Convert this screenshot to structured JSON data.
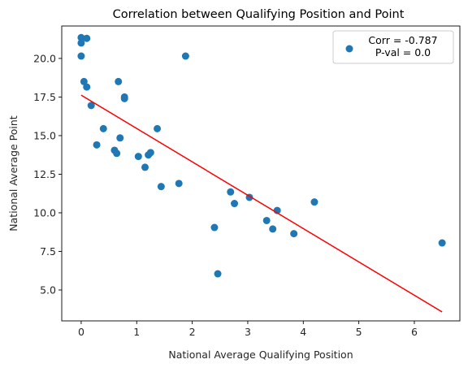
{
  "chart_data": {
    "type": "scatter",
    "title": "Correlation between Qualifying Position and Point",
    "xlabel": "National Average Qualifying Position",
    "ylabel": "National Average Point",
    "xlim": [
      -0.35,
      6.82
    ],
    "ylim": [
      3.0,
      22.1
    ],
    "xticks": [
      0,
      1,
      2,
      3,
      4,
      5,
      6
    ],
    "xtick_labels": [
      "0",
      "1",
      "2",
      "3",
      "4",
      "5",
      "6"
    ],
    "yticks": [
      5.0,
      7.5,
      10.0,
      12.5,
      15.0,
      17.5,
      20.0
    ],
    "ytick_labels": [
      "5.0",
      "7.5",
      "10.0",
      "12.5",
      "15.0",
      "17.5",
      "20.0"
    ],
    "grid": false,
    "legend_position": "top-right",
    "legend_lines": [
      "Corr = -0.787",
      "P-val = 0.0"
    ],
    "point_color": "#1f77b4",
    "line_color": "#ff0000",
    "points": [
      {
        "x": 0.0,
        "y": 21.35
      },
      {
        "x": 0.1,
        "y": 21.3
      },
      {
        "x": 0.0,
        "y": 21.0
      },
      {
        "x": 0.0,
        "y": 20.15
      },
      {
        "x": 0.05,
        "y": 18.5
      },
      {
        "x": 0.1,
        "y": 18.15
      },
      {
        "x": 0.18,
        "y": 16.95
      },
      {
        "x": 0.4,
        "y": 15.45
      },
      {
        "x": 0.28,
        "y": 14.4
      },
      {
        "x": 0.6,
        "y": 14.05
      },
      {
        "x": 0.64,
        "y": 13.85
      },
      {
        "x": 0.67,
        "y": 18.5
      },
      {
        "x": 0.7,
        "y": 14.85
      },
      {
        "x": 0.78,
        "y": 17.5
      },
      {
        "x": 0.78,
        "y": 17.4
      },
      {
        "x": 1.03,
        "y": 13.65
      },
      {
        "x": 1.15,
        "y": 12.95
      },
      {
        "x": 1.21,
        "y": 13.75
      },
      {
        "x": 1.25,
        "y": 13.9
      },
      {
        "x": 1.37,
        "y": 15.45
      },
      {
        "x": 1.44,
        "y": 11.7
      },
      {
        "x": 1.76,
        "y": 11.9
      },
      {
        "x": 1.88,
        "y": 20.15
      },
      {
        "x": 2.4,
        "y": 9.05
      },
      {
        "x": 2.46,
        "y": 6.05
      },
      {
        "x": 2.69,
        "y": 11.35
      },
      {
        "x": 2.76,
        "y": 10.6
      },
      {
        "x": 3.03,
        "y": 11.0
      },
      {
        "x": 3.34,
        "y": 9.5
      },
      {
        "x": 3.45,
        "y": 8.95
      },
      {
        "x": 3.53,
        "y": 10.15
      },
      {
        "x": 3.83,
        "y": 8.65
      },
      {
        "x": 4.2,
        "y": 10.7
      },
      {
        "x": 6.5,
        "y": 8.05
      }
    ],
    "regression_line": {
      "x": [
        0.0,
        6.5
      ],
      "y": [
        17.62,
        3.58
      ]
    }
  }
}
